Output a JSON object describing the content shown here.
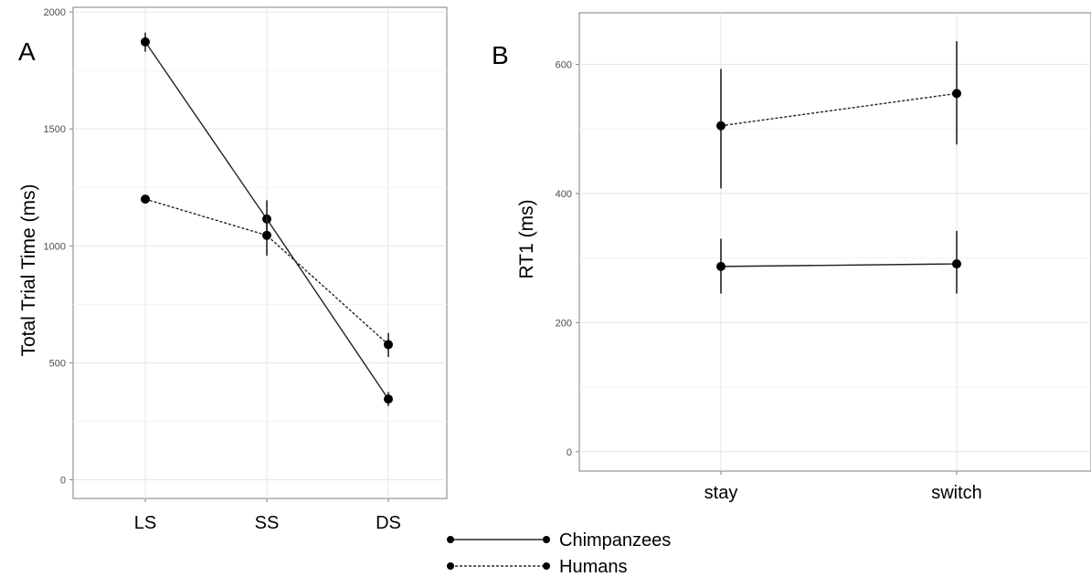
{
  "chart_data": [
    {
      "panel_label": "A",
      "type": "line",
      "categories": [
        "LS",
        "SS",
        "DS"
      ],
      "ylabel": "Total Trial Time (ms)",
      "ylim": [
        -80,
        2020
      ],
      "yticks": [
        0,
        500,
        1000,
        1500,
        2000
      ],
      "grid": true,
      "series": [
        {
          "style": "solid",
          "values": [
            1872,
            1115,
            345
          ],
          "err_low": [
            1830,
            1030,
            315
          ],
          "err_high": [
            1912,
            1195,
            375
          ]
        },
        {
          "style": "dashed",
          "values": [
            1200,
            1045,
            578
          ],
          "err_low": [
            1190,
            958,
            525
          ],
          "err_high": [
            1212,
            1125,
            628
          ]
        }
      ]
    },
    {
      "panel_label": "B",
      "type": "line",
      "categories": [
        "stay",
        "switch"
      ],
      "ylabel": "RT1 (ms)",
      "ylim": [
        -30,
        680
      ],
      "yticks": [
        0,
        200,
        400,
        600
      ],
      "grid": true,
      "series": [
        {
          "style": "solid",
          "values": [
            287,
            291
          ],
          "err_low": [
            245,
            245
          ],
          "err_high": [
            330,
            342
          ]
        },
        {
          "style": "dashed",
          "values": [
            505,
            555
          ],
          "err_low": [
            408,
            476
          ],
          "err_high": [
            593,
            636
          ]
        }
      ]
    }
  ],
  "legend": {
    "entries": [
      {
        "label": "Chimpanzees",
        "style": "solid"
      },
      {
        "label": "Humans",
        "style": "dashed"
      }
    ]
  }
}
